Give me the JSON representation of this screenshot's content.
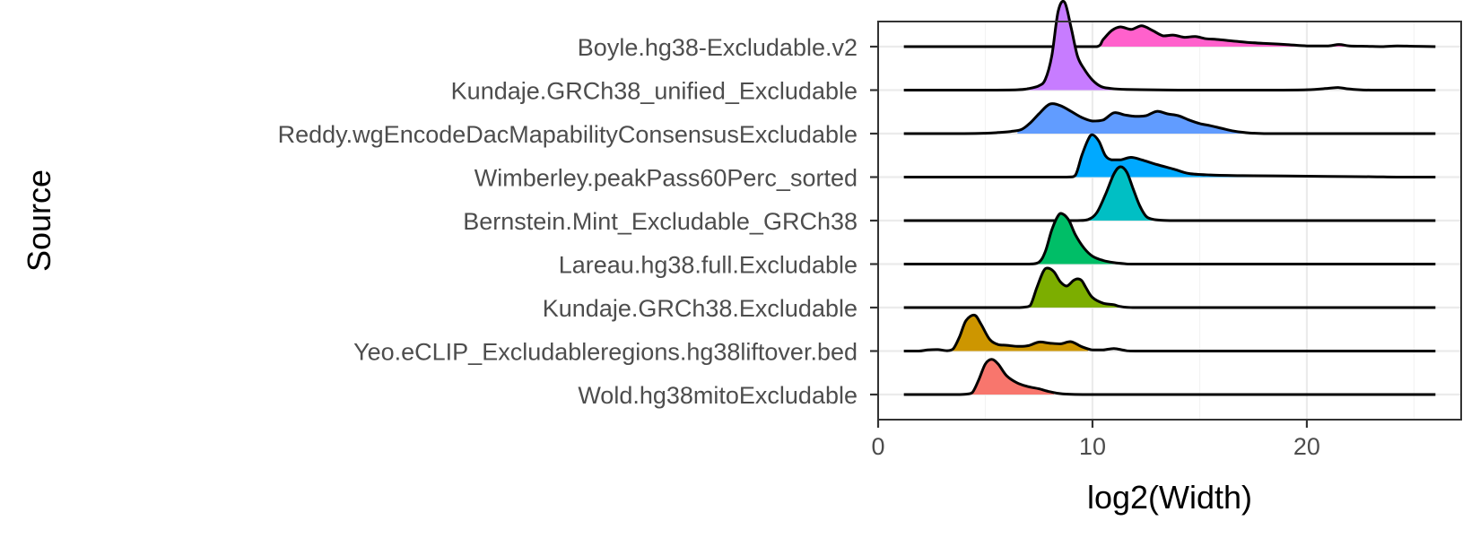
{
  "chart_data": {
    "type": "ridgeline",
    "xlabel": "log2(Width)",
    "ylabel": "Source",
    "xlim": [
      0,
      27.2
    ],
    "x_ticks": [
      0,
      10,
      20
    ],
    "x_minor_ticks": [
      5,
      15,
      25
    ],
    "grid": true,
    "legend": "none",
    "series": [
      {
        "name": "Wold.hg38mitoExcludable",
        "color": "#F8766D",
        "fill_range": [
          4.3,
          8.2
        ],
        "x": [
          1.2,
          3.5,
          4.1,
          4.4,
          4.7,
          5.0,
          5.3,
          5.6,
          6.0,
          6.5,
          7.0,
          7.5,
          8.0,
          8.6,
          10,
          15,
          20,
          26
        ],
        "density": [
          0,
          0,
          0.01,
          0.06,
          0.42,
          0.85,
          0.98,
          0.85,
          0.52,
          0.32,
          0.22,
          0.16,
          0.08,
          0.02,
          0,
          0,
          0,
          0
        ]
      },
      {
        "name": "Yeo.eCLIP_Excludableregions.hg38liftover.bed",
        "color": "#CD9600",
        "fill_range": [
          3.4,
          9.8
        ],
        "x": [
          1.2,
          1.9,
          2.3,
          2.8,
          3.2,
          3.5,
          3.8,
          4.1,
          4.5,
          4.8,
          5.2,
          5.6,
          6.0,
          6.5,
          7.0,
          7.5,
          8.0,
          8.5,
          9.0,
          9.5,
          10.0,
          10.5,
          11.0,
          11.5,
          12,
          15,
          20,
          26
        ],
        "density": [
          0,
          0,
          0.03,
          0.04,
          0.01,
          0.06,
          0.4,
          0.85,
          1.0,
          0.75,
          0.33,
          0.18,
          0.16,
          0.13,
          0.15,
          0.25,
          0.22,
          0.2,
          0.26,
          0.12,
          0.03,
          0.03,
          0.07,
          0.02,
          0,
          0,
          0,
          0
        ]
      },
      {
        "name": "Kundaje.GRCh38.Excludable",
        "color": "#7CAE00",
        "fill_range": [
          7.0,
          11.3
        ],
        "x": [
          1.2,
          5,
          6.4,
          6.8,
          7.1,
          7.4,
          7.7,
          7.9,
          8.2,
          8.5,
          8.8,
          9.1,
          9.3,
          9.5,
          9.7,
          10.0,
          10.5,
          11.0,
          11.3,
          12,
          15,
          20,
          26
        ],
        "density": [
          0,
          0,
          0,
          0.01,
          0.06,
          0.55,
          1.0,
          1.1,
          1.0,
          0.72,
          0.6,
          0.75,
          0.8,
          0.75,
          0.55,
          0.28,
          0.12,
          0.08,
          0.03,
          0,
          0,
          0,
          0
        ]
      },
      {
        "name": "Lareau.hg38.full.Excludable",
        "color": "#00BE67",
        "fill_range": [
          7.3,
          11.2
        ],
        "x": [
          1.2,
          6,
          7.0,
          7.5,
          7.8,
          8.1,
          8.4,
          8.6,
          8.9,
          9.2,
          9.6,
          10.0,
          10.5,
          11.0,
          11.5,
          12,
          15,
          20,
          26
        ],
        "density": [
          0,
          0,
          0,
          0.05,
          0.35,
          0.95,
          1.35,
          1.4,
          1.22,
          0.82,
          0.45,
          0.22,
          0.1,
          0.04,
          0.01,
          0,
          0,
          0,
          0
        ]
      },
      {
        "name": "Bernstein.Mint_Excludable_GRCh38",
        "color": "#00BFC4",
        "fill_range": [
          9.2,
          12.9
        ],
        "x": [
          1.2,
          8,
          9.3,
          9.8,
          10.2,
          10.6,
          11.0,
          11.3,
          11.6,
          11.9,
          12.2,
          12.5,
          12.8,
          13.2,
          13.8,
          15,
          20,
          26
        ],
        "density": [
          0,
          0,
          0,
          0.03,
          0.22,
          0.72,
          1.3,
          1.5,
          1.35,
          0.88,
          0.42,
          0.12,
          0.04,
          0.01,
          0,
          0,
          0,
          0
        ]
      },
      {
        "name": "Wimberley.peakPass60Perc_sorted",
        "color": "#00A9FF",
        "fill_range": [
          9.1,
          24.2
        ],
        "x": [
          1.2,
          7,
          8.8,
          9.2,
          9.5,
          9.8,
          10.0,
          10.3,
          10.6,
          10.9,
          11.3,
          11.8,
          12.3,
          13.0,
          13.8,
          14.5,
          15.5,
          17,
          19,
          21,
          23,
          24.2,
          26
        ],
        "density": [
          0,
          0,
          0,
          0.05,
          0.6,
          1.05,
          1.18,
          1.0,
          0.6,
          0.48,
          0.48,
          0.55,
          0.48,
          0.35,
          0.22,
          0.1,
          0.06,
          0.04,
          0.03,
          0.02,
          0.01,
          0,
          0
        ]
      },
      {
        "name": "Reddy.wgEncodeDacMapabilityConsensusExcludable",
        "color": "#619CFF",
        "fill_range": [
          6.5,
          17.1
        ],
        "x": [
          1.2,
          4,
          5,
          5.6,
          6.2,
          6.7,
          7.1,
          7.5,
          8.0,
          8.5,
          9.0,
          9.5,
          10.0,
          10.5,
          11.0,
          11.5,
          12.0,
          12.5,
          13.0,
          13.5,
          14.0,
          14.5,
          15.0,
          15.5,
          16.0,
          16.5,
          17.1,
          18,
          20,
          26
        ],
        "density": [
          0,
          0,
          0.01,
          0.03,
          0.06,
          0.12,
          0.3,
          0.55,
          0.82,
          0.78,
          0.62,
          0.45,
          0.35,
          0.38,
          0.58,
          0.52,
          0.48,
          0.5,
          0.62,
          0.55,
          0.5,
          0.38,
          0.28,
          0.22,
          0.15,
          0.08,
          0.03,
          0,
          0,
          0
        ]
      },
      {
        "name": "Kundaje.GRCh38_unified_Excludable",
        "color": "#C77CFF",
        "fill_range": [
          7.0,
          11.6
        ],
        "x": [
          1.2,
          5,
          6.5,
          7.0,
          7.5,
          7.8,
          8.1,
          8.4,
          8.7,
          9.0,
          9.3,
          9.6,
          10.0,
          10.4,
          10.8,
          11.6,
          14,
          18,
          20,
          21,
          21.5,
          22,
          23,
          26
        ],
        "density": [
          0,
          0,
          0.01,
          0.04,
          0.12,
          0.3,
          0.95,
          2.2,
          2.45,
          1.75,
          0.95,
          0.6,
          0.28,
          0.1,
          0.05,
          0.02,
          0,
          0,
          0.01,
          0.05,
          0.07,
          0.03,
          0,
          0
        ]
      },
      {
        "name": "Boyle.hg38-Excludable.v2",
        "color": "#FF61CC",
        "fill_range": [
          10.4,
          21.9
        ],
        "x": [
          1.2,
          9,
          10.2,
          10.5,
          10.9,
          11.3,
          11.8,
          12.3,
          12.8,
          13.3,
          13.8,
          14.3,
          14.8,
          15.3,
          15.8,
          16.5,
          17.2,
          18.0,
          19.0,
          20.0,
          21.0,
          21.5,
          22.0,
          22.8,
          23.5,
          24.2,
          25.0,
          26
        ],
        "density": [
          0,
          0,
          0,
          0.2,
          0.45,
          0.55,
          0.48,
          0.58,
          0.45,
          0.3,
          0.32,
          0.26,
          0.28,
          0.22,
          0.2,
          0.16,
          0.12,
          0.09,
          0.06,
          0.02,
          0.02,
          0.06,
          0.02,
          0.01,
          0.0,
          0.02,
          0.01,
          0
        ]
      }
    ]
  }
}
